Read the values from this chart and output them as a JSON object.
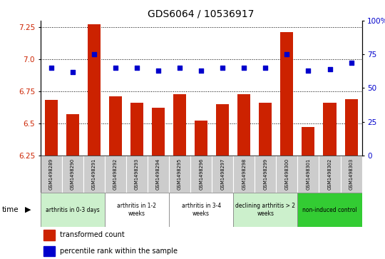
{
  "title": "GDS6064 / 10536917",
  "samples": [
    "GSM1498289",
    "GSM1498290",
    "GSM1498291",
    "GSM1498292",
    "GSM1498293",
    "GSM1498294",
    "GSM1498295",
    "GSM1498296",
    "GSM1498297",
    "GSM1498298",
    "GSM1498299",
    "GSM1498300",
    "GSM1498301",
    "GSM1498302",
    "GSM1498303"
  ],
  "bar_values": [
    6.68,
    6.57,
    7.27,
    6.71,
    6.66,
    6.62,
    6.73,
    6.52,
    6.65,
    6.73,
    6.66,
    7.21,
    6.47,
    6.66,
    6.69
  ],
  "dot_values": [
    65,
    62,
    75,
    65,
    65,
    63,
    65,
    63,
    65,
    65,
    65,
    75,
    63,
    64,
    69
  ],
  "ylim": [
    6.25,
    7.3
  ],
  "ylim_right": [
    0,
    100
  ],
  "yticks_left": [
    6.25,
    6.5,
    6.75,
    7.0,
    7.25
  ],
  "yticks_right": [
    0,
    25,
    50,
    75,
    100
  ],
  "bar_color": "#cc2200",
  "dot_color": "#0000cc",
  "groups": [
    {
      "label": "arthritis in 0-3 days",
      "start": 0,
      "end": 3,
      "color": "#ccf0cc"
    },
    {
      "label": "arthritis in 1-2\nweeks",
      "start": 3,
      "end": 6,
      "color": "#ffffff"
    },
    {
      "label": "arthritis in 3-4\nweeks",
      "start": 6,
      "end": 9,
      "color": "#ffffff"
    },
    {
      "label": "declining arthritis > 2\nweeks",
      "start": 9,
      "end": 12,
      "color": "#ccf0cc"
    },
    {
      "label": "non-induced control",
      "start": 12,
      "end": 15,
      "color": "#33cc33"
    }
  ],
  "legend_bar_label": "transformed count",
  "legend_dot_label": "percentile rank within the sample",
  "bottom_row_color": "#cccccc"
}
